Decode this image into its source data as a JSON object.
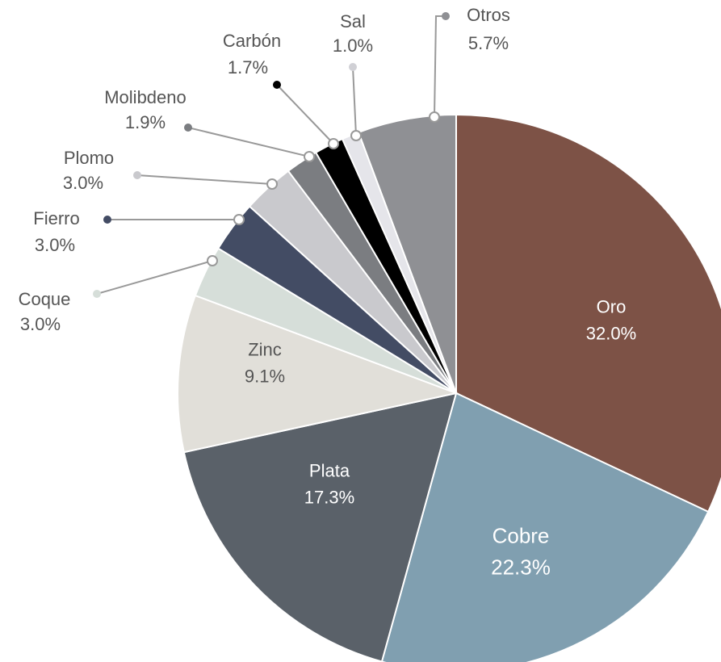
{
  "chart_data": {
    "type": "pie",
    "categories": [
      "Oro",
      "Cobre",
      "Plata",
      "Zinc",
      "Coque",
      "Fierro",
      "Plomo",
      "Molibdeno",
      "Carbón",
      "Sal",
      "Otros"
    ],
    "values": [
      32.0,
      22.3,
      17.3,
      9.1,
      3.0,
      3.0,
      3.0,
      1.9,
      1.7,
      1.0,
      5.7
    ],
    "value_labels": [
      "32.0%",
      "22.3%",
      "17.3%",
      "9.1%",
      "3.0%",
      "3.0%",
      "3.0%",
      "1.9%",
      "1.7%",
      "1.0%",
      "5.7%"
    ],
    "colors": [
      "#7d5246",
      "#809fb0",
      "#5a6169",
      "#e1dfd9",
      "#d6ded9",
      "#434c64",
      "#c9c9cd",
      "#7b7d81",
      "#000000",
      "#e5e5ea",
      "#8f9094"
    ]
  }
}
